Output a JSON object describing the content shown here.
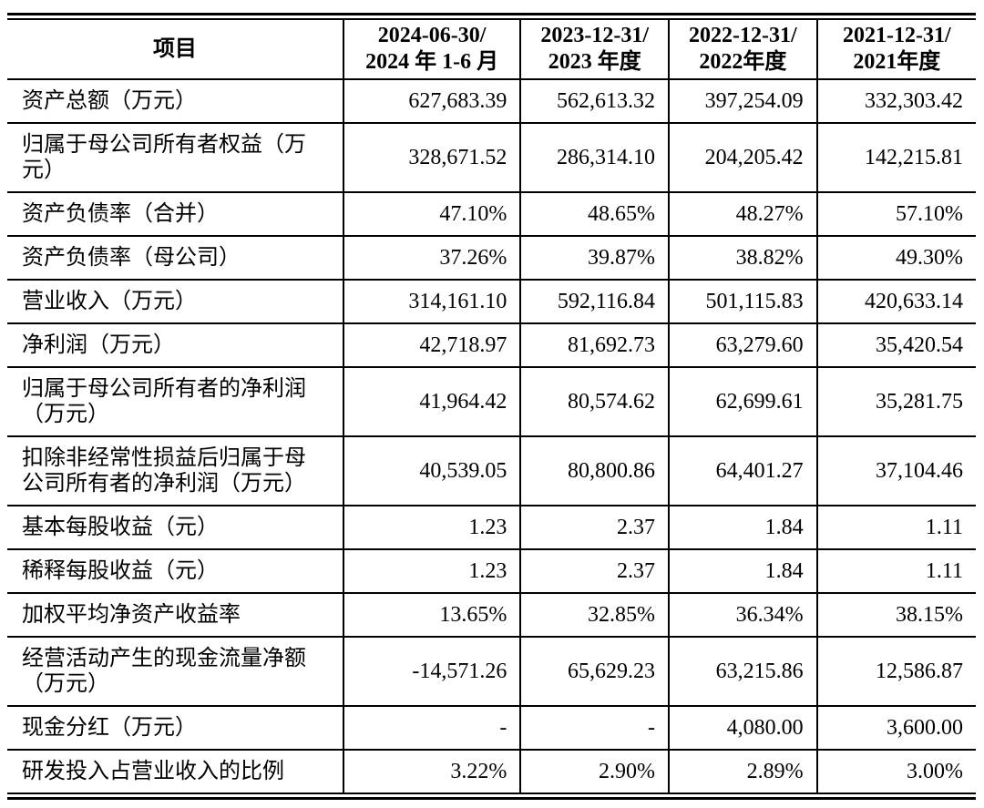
{
  "page": {
    "background": "#ffffff",
    "text_color": "#000000",
    "border_color": "#000000"
  },
  "table": {
    "header": [
      {
        "line1": "项目",
        "line2": ""
      },
      {
        "line1": "2024-06-30/",
        "line2": "2024 年 1-6 月"
      },
      {
        "line1": "2023-12-31/",
        "line2": "2023 年度"
      },
      {
        "line1": "2022-12-31/",
        "line2": "2022年度"
      },
      {
        "line1": "2021-12-31/",
        "line2": "2021年度"
      }
    ],
    "rows": [
      {
        "label": "资产总额（万元）",
        "values": [
          "627,683.39",
          "562,613.32",
          "397,254.09",
          "332,303.42"
        ]
      },
      {
        "label": "归属于母公司所有者权益（万元）",
        "values": [
          "328,671.52",
          "286,314.10",
          "204,205.42",
          "142,215.81"
        ]
      },
      {
        "label": "资产负债率（合并）",
        "values": [
          "47.10%",
          "48.65%",
          "48.27%",
          "57.10%"
        ]
      },
      {
        "label": "资产负债率（母公司）",
        "values": [
          "37.26%",
          "39.87%",
          "38.82%",
          "49.30%"
        ]
      },
      {
        "label": "营业收入（万元）",
        "values": [
          "314,161.10",
          "592,116.84",
          "501,115.83",
          "420,633.14"
        ]
      },
      {
        "label": "净利润（万元）",
        "values": [
          "42,718.97",
          "81,692.73",
          "63,279.60",
          "35,420.54"
        ]
      },
      {
        "label": "归属于母公司所有者的净利润（万元）",
        "values": [
          "41,964.42",
          "80,574.62",
          "62,699.61",
          "35,281.75"
        ]
      },
      {
        "label": "扣除非经常性损益后归属于母公司所有者的净利润（万元）",
        "values": [
          "40,539.05",
          "80,800.86",
          "64,401.27",
          "37,104.46"
        ]
      },
      {
        "label": "基本每股收益（元）",
        "values": [
          "1.23",
          "2.37",
          "1.84",
          "1.11"
        ]
      },
      {
        "label": "稀释每股收益（元）",
        "values": [
          "1.23",
          "2.37",
          "1.84",
          "1.11"
        ]
      },
      {
        "label": "加权平均净资产收益率",
        "values": [
          "13.65%",
          "32.85%",
          "36.34%",
          "38.15%"
        ]
      },
      {
        "label": "经营活动产生的现金流量净额（万元）",
        "values": [
          "-14,571.26",
          "65,629.23",
          "63,215.86",
          "12,586.87"
        ]
      },
      {
        "label": "现金分红（万元）",
        "values": [
          "-",
          "-",
          "4,080.00",
          "3,600.00"
        ]
      },
      {
        "label": "研发投入占营业收入的比例",
        "values": [
          "3.22%",
          "2.90%",
          "2.89%",
          "3.00%"
        ]
      }
    ]
  }
}
